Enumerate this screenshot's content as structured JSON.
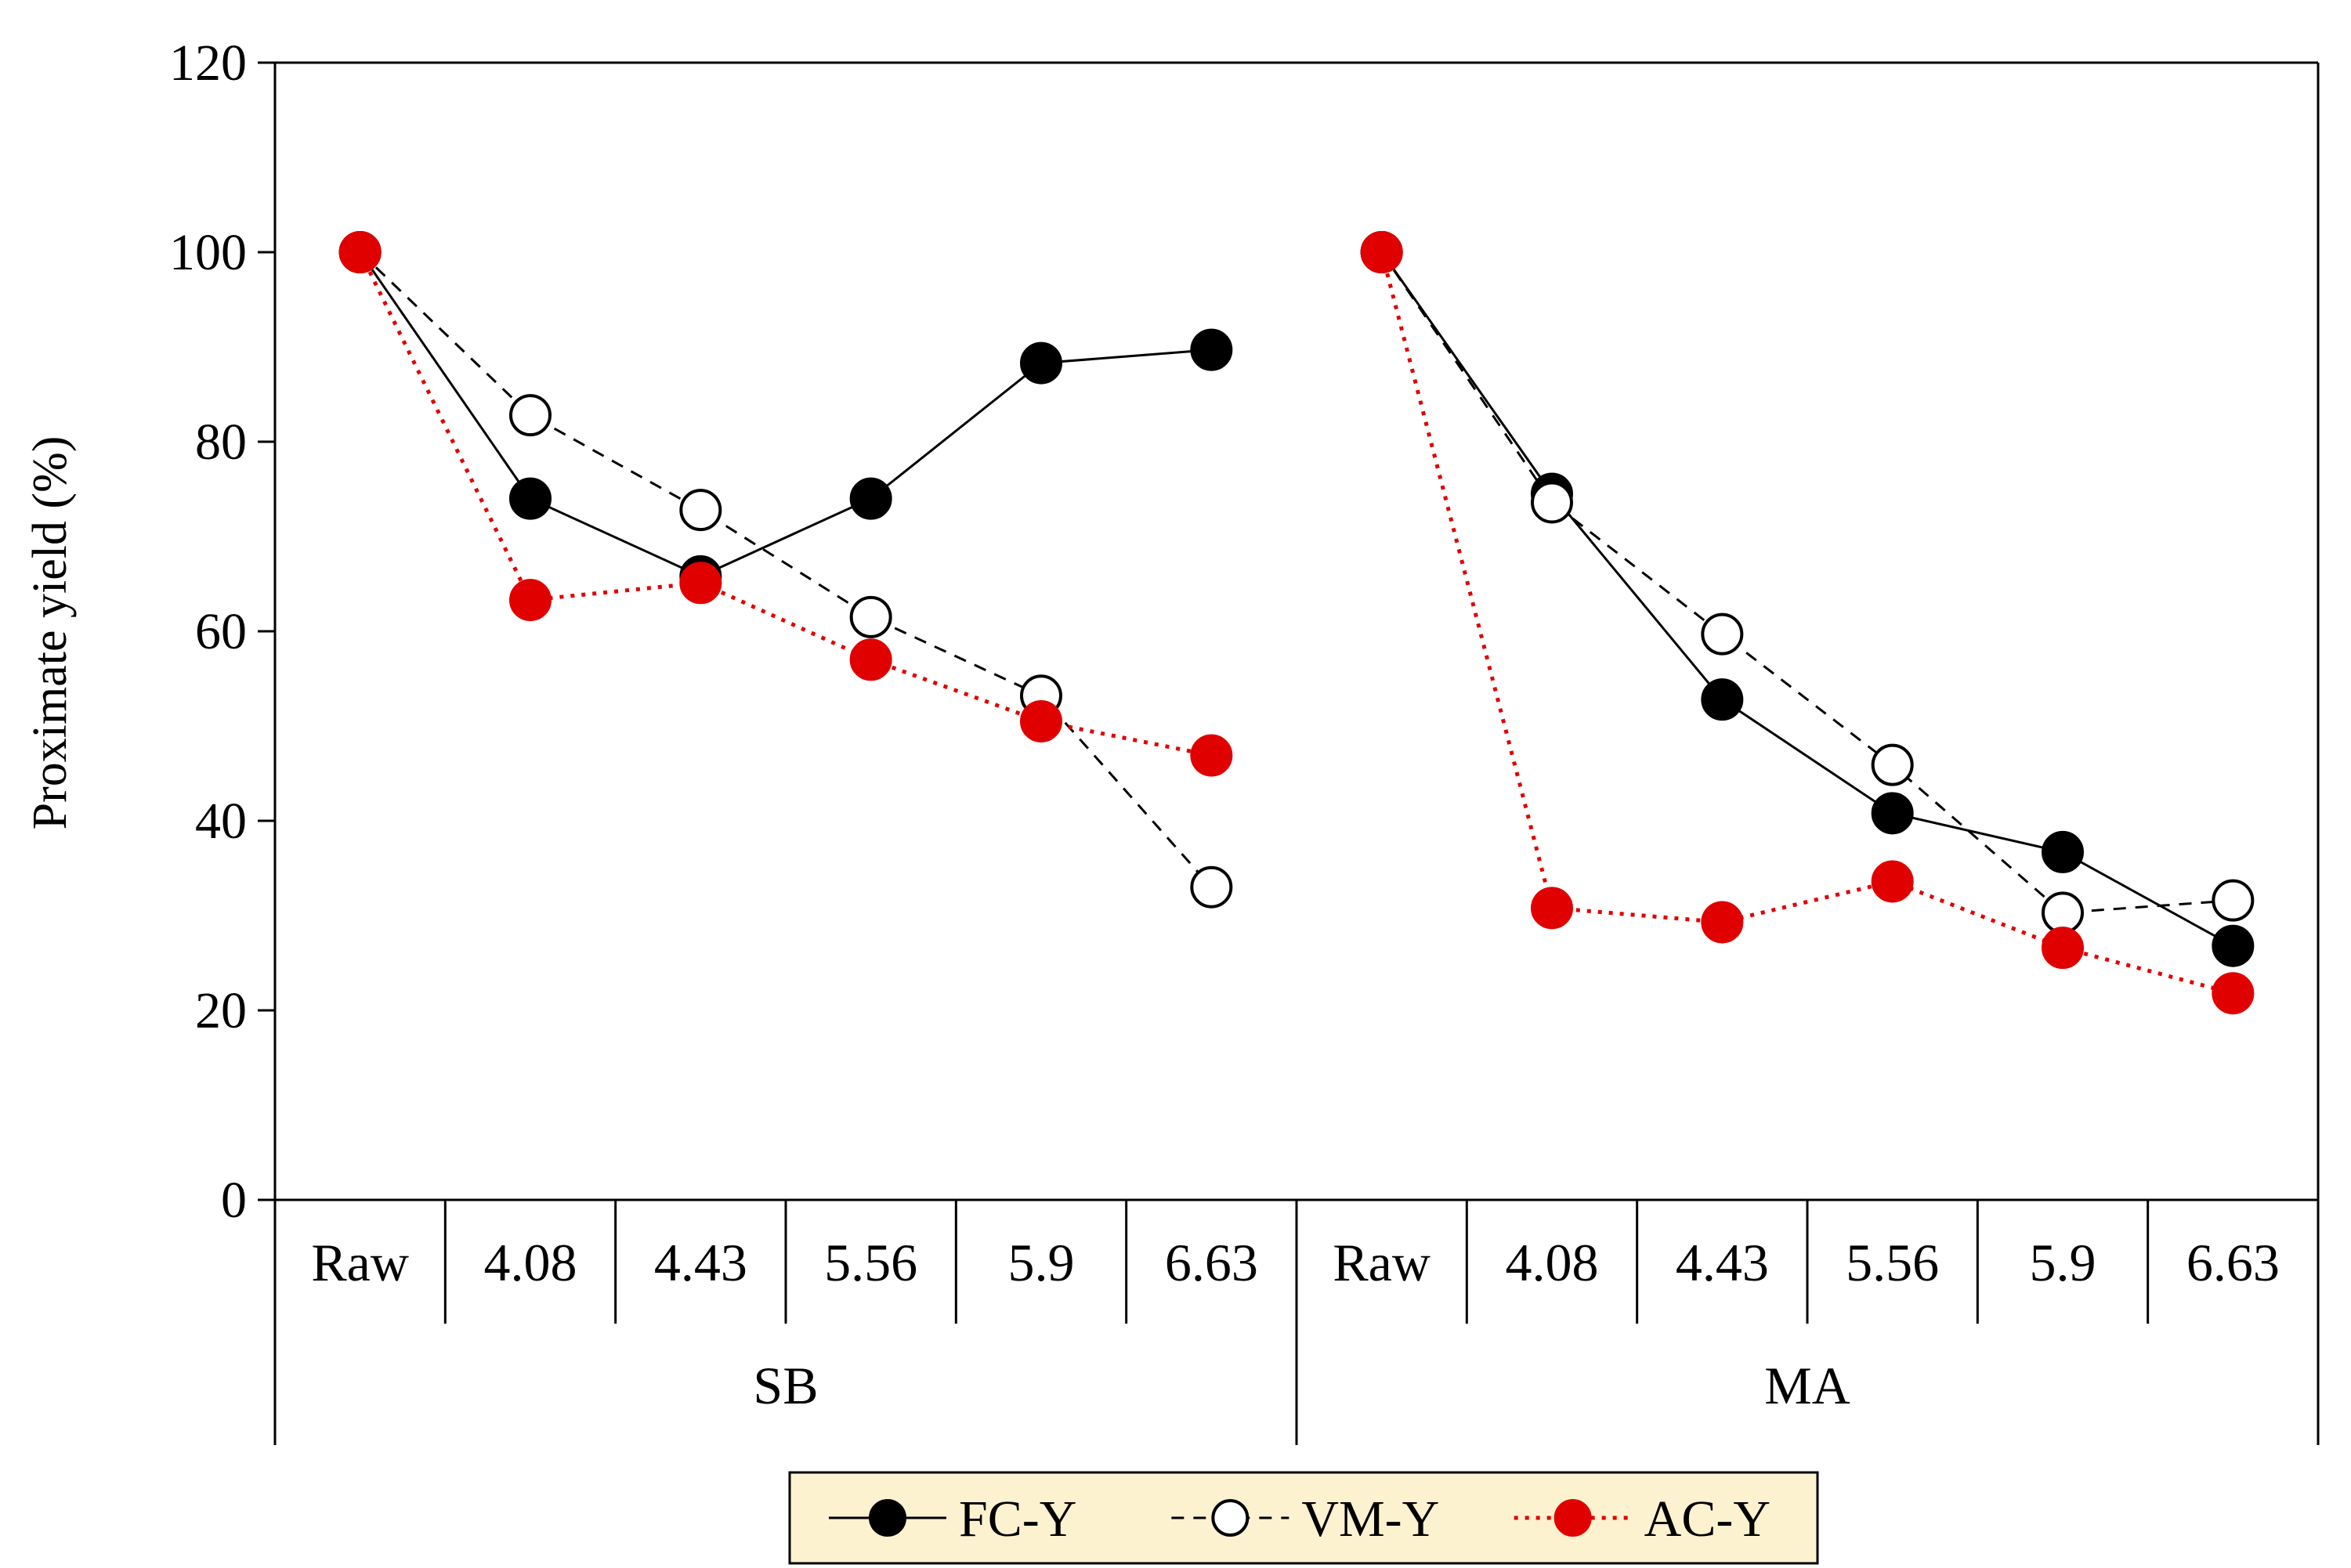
{
  "chart_data": {
    "type": "line",
    "title": "",
    "xlabel": "",
    "ylabel": "Proximate yield (%)",
    "ylim": [
      0,
      120
    ],
    "yticks": [
      0,
      20,
      40,
      60,
      80,
      100,
      120
    ],
    "categories": [
      "Raw",
      "4.08",
      "4.43",
      "5.56",
      "5.9",
      "6.63",
      "Raw",
      "4.08",
      "4.43",
      "5.56",
      "5.9",
      "6.63"
    ],
    "groups": [
      {
        "label": "SB",
        "span": [
          0,
          6
        ]
      },
      {
        "label": "MA",
        "span": [
          6,
          12
        ]
      }
    ],
    "series": [
      {
        "name": "FC-Y",
        "style": "solid",
        "marker": "filled",
        "color": "#000000",
        "segments": [
          [
            100,
            74.0,
            65.8,
            74.0,
            88.3,
            89.7
          ],
          [
            100,
            74.5,
            52.8,
            40.8,
            36.7,
            26.8
          ]
        ]
      },
      {
        "name": "VM-Y",
        "style": "dashed",
        "marker": "open",
        "color": "#000000",
        "segments": [
          [
            100,
            82.8,
            72.8,
            61.5,
            53.2,
            33.0
          ],
          [
            100,
            73.6,
            59.7,
            45.9,
            30.3,
            31.6
          ]
        ]
      },
      {
        "name": "AC-Y",
        "style": "dotted",
        "marker": "filled",
        "color": "#e00000",
        "segments": [
          [
            100,
            63.3,
            65.1,
            57.0,
            50.5,
            46.9
          ],
          [
            100,
            30.8,
            29.3,
            33.6,
            26.6,
            21.8
          ]
        ]
      }
    ],
    "legend": "bottom-center"
  },
  "colors": {
    "legend_bg": "#fdf2d0",
    "ac_red": "#e00000"
  }
}
